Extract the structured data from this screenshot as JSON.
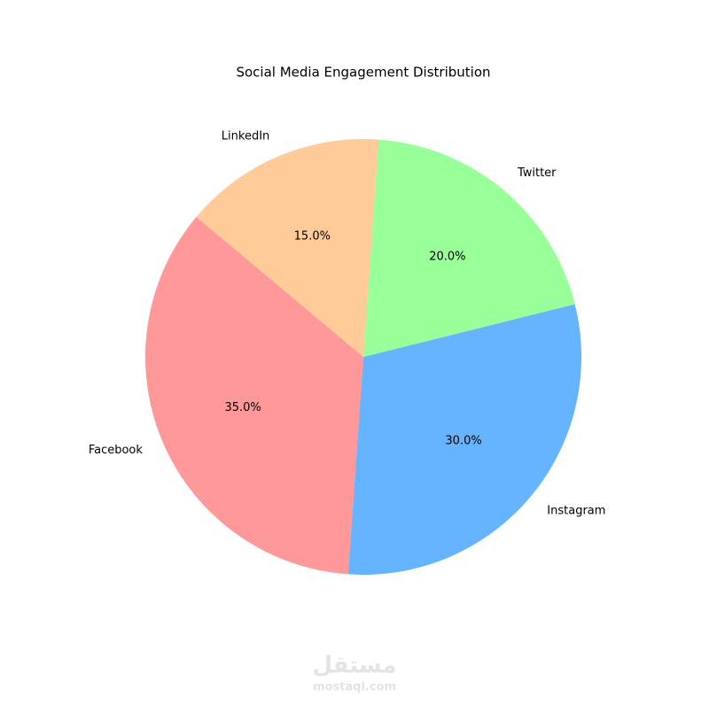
{
  "chart_data": {
    "type": "pie",
    "title": "Social Media Engagement Distribution",
    "categories": [
      "Facebook",
      "Instagram",
      "Twitter",
      "LinkedIn"
    ],
    "values": [
      35,
      30,
      20,
      15
    ],
    "value_labels": [
      "35.0%",
      "30.0%",
      "20.0%",
      "15.0%"
    ],
    "colors": [
      "#ff9999",
      "#66b3ff",
      "#99ff99",
      "#ffcc99"
    ],
    "start_angle": 140
  },
  "watermark": {
    "arabic": "مستقل",
    "latin": "mostaql.com"
  }
}
